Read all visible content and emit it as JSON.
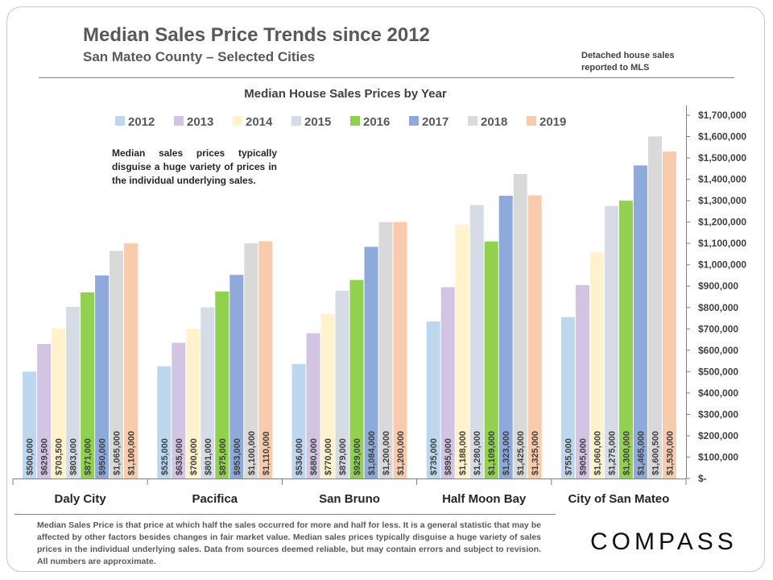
{
  "header": {
    "title": "Median Sales Price Trends since 2012",
    "subtitle": "San Mateo County – Selected Cities",
    "note_line1": "Detached house sales",
    "note_line2": "reported to MLS"
  },
  "annotation": "Median sales prices typically disguise a huge variety of prices in the individual underlying sales.",
  "footnote": "Median Sales Price is that price at which half the sales occurred for more and half for less. It is a general statistic that may be affected by other factors besides changes in fair market value. Median sales prices typically disguise a huge variety of sales prices in the individual underlying sales. Data from sources deemed reliable, but may contain errors and subject to revision.  All numbers are approximate.",
  "logo": "COMPASS",
  "chart_data": {
    "type": "bar",
    "title": "Median House Sales Prices by Year",
    "categories": [
      "Daly City",
      "Pacifica",
      "San Bruno",
      "Half Moon Bay",
      "City of San Mateo"
    ],
    "ylim": [
      0,
      1700000
    ],
    "y_tick_step": 100000,
    "y_axis_position": "right",
    "legend_position": "top",
    "grid": false,
    "series": [
      {
        "name": "2012",
        "color": "#bdd7ee",
        "values": [
          500000,
          525000,
          536000,
          735000,
          755000
        ],
        "labels": [
          "$500,000",
          "$525,000",
          "$536,000",
          "$735,000",
          "$755,000"
        ]
      },
      {
        "name": "2013",
        "color": "#d2c4e2",
        "values": [
          629500,
          635000,
          680000,
          895000,
          905000
        ],
        "labels": [
          "$629,500",
          "$635,000",
          "$680,000",
          "$895,000",
          "$905,000"
        ]
      },
      {
        "name": "2014",
        "color": "#fff2cc",
        "values": [
          703500,
          700000,
          770000,
          1188000,
          1060000
        ],
        "labels": [
          "$703,500",
          "$700,000",
          "$770,000",
          "$1,188,000",
          "$1,060,000"
        ]
      },
      {
        "name": "2015",
        "color": "#d6dce5",
        "values": [
          803000,
          801000,
          879000,
          1280000,
          1275000
        ],
        "labels": [
          "$803,000",
          "$801,000",
          "$879,000",
          "$1,280,000",
          "$1,275,000"
        ]
      },
      {
        "name": "2016",
        "color": "#92d050",
        "values": [
          871000,
          875000,
          929000,
          1109000,
          1300000
        ],
        "labels": [
          "$871,000",
          "$875,000",
          "$929,000",
          "$1,109,000",
          "$1,300,000"
        ]
      },
      {
        "name": "2017",
        "color": "#8eaadb",
        "values": [
          950000,
          953000,
          1084000,
          1323000,
          1465000
        ],
        "labels": [
          "$950,000",
          "$953,000",
          "$1,084,000",
          "$1,323,000",
          "$1,465,000"
        ]
      },
      {
        "name": "2018",
        "color": "#d9d9d9",
        "values": [
          1065000,
          1100000,
          1200000,
          1425000,
          1600500
        ],
        "labels": [
          "$1,065,000",
          "$1,100,000",
          "$1,200,000",
          "$1,425,000",
          "$1,600,500"
        ]
      },
      {
        "name": "2019",
        "color": "#f8cbad",
        "values": [
          1100000,
          1110000,
          1200000,
          1325000,
          1530000
        ],
        "labels": [
          "$1,100,000",
          "$1,110,000",
          "$1,200,000",
          "$1,325,000",
          "$1,530,000"
        ]
      }
    ],
    "y_tick_labels": [
      "$-",
      "$100,000",
      "$200,000",
      "$300,000",
      "$400,000",
      "$500,000",
      "$600,000",
      "$700,000",
      "$800,000",
      "$900,000",
      "$1,000,000",
      "$1,100,000",
      "$1,200,000",
      "$1,300,000",
      "$1,400,000",
      "$1,500,000",
      "$1,600,000",
      "$1,700,000"
    ]
  }
}
